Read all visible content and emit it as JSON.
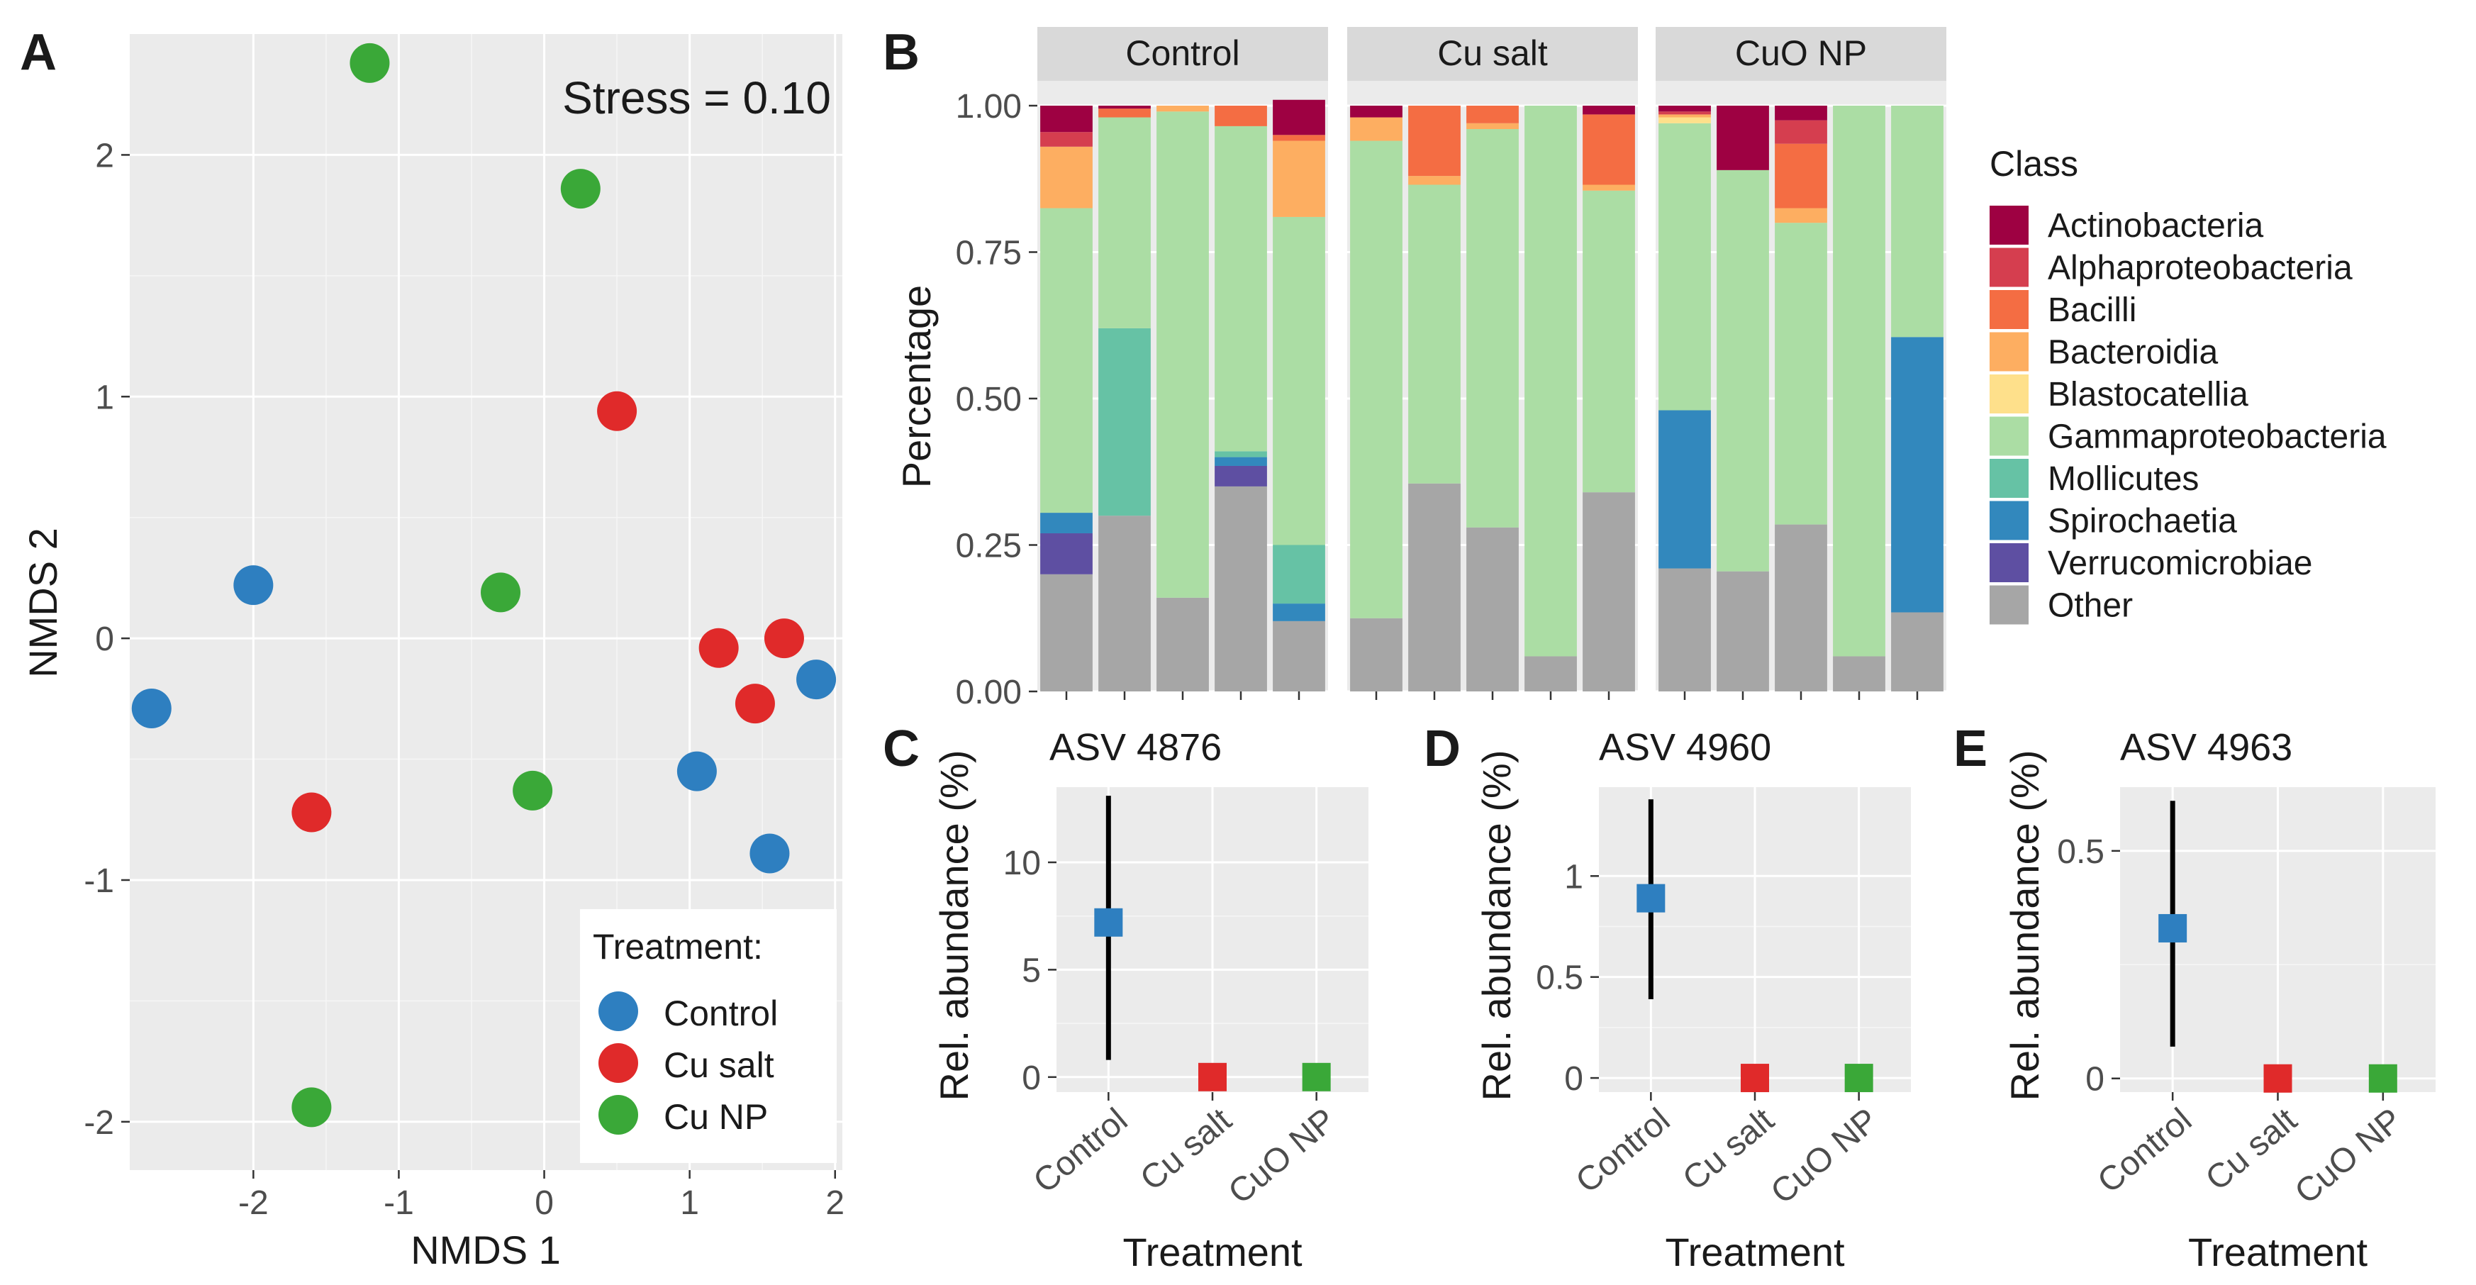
{
  "colors": {
    "control": "#2e7fc0",
    "cu_salt": "#e02a2a",
    "cu_np": "#3aa838"
  },
  "panel_letters": [
    "A",
    "B",
    "C",
    "D",
    "E"
  ],
  "chart_data": [
    {
      "id": "A",
      "type": "scatter",
      "title": "",
      "xlabel": "NMDS 1",
      "ylabel": "NMDS 2",
      "annotation": "Stress = 0.10",
      "xlim": [
        -2.85,
        2.05
      ],
      "ylim": [
        -2.2,
        2.5
      ],
      "xticks": [
        -2,
        -1,
        0,
        1,
        2
      ],
      "yticks": [
        -2,
        -1,
        0,
        1,
        2
      ],
      "xtick_labels": [
        "-2",
        "-1",
        "0",
        "1",
        "2"
      ],
      "ytick_labels": [
        "-2",
        "-1",
        "0",
        "1",
        "2"
      ],
      "legend": {
        "title": "Treatment:",
        "position": "bottom-right",
        "entries": [
          "Control",
          "Cu salt",
          "Cu NP"
        ]
      },
      "series": [
        {
          "name": "Control",
          "color_key": "control",
          "points": [
            [
              -2.0,
              0.22
            ],
            [
              -2.7,
              -0.29
            ],
            [
              1.05,
              -0.55
            ],
            [
              1.55,
              -0.89
            ],
            [
              1.87,
              -0.17
            ]
          ]
        },
        {
          "name": "Cu salt",
          "color_key": "cu_salt",
          "points": [
            [
              0.5,
              0.94
            ],
            [
              1.2,
              -0.04
            ],
            [
              1.65,
              0.0
            ],
            [
              1.45,
              -0.27
            ],
            [
              -1.6,
              -0.72
            ]
          ]
        },
        {
          "name": "Cu NP",
          "color_key": "cu_np",
          "points": [
            [
              -1.2,
              2.38
            ],
            [
              0.25,
              1.86
            ],
            [
              -0.3,
              0.19
            ],
            [
              -0.08,
              -0.63
            ],
            [
              -1.6,
              -1.94
            ]
          ]
        }
      ]
    },
    {
      "id": "B",
      "type": "bar",
      "stacked": true,
      "ylabel": "Percentage",
      "xlabel": "",
      "ylim": [
        0,
        1.0
      ],
      "yticks": [
        0,
        0.25,
        0.5,
        0.75,
        1.0
      ],
      "ytick_labels": [
        "0.00",
        "0.25",
        "0.50",
        "0.75",
        "1.00"
      ],
      "legend": {
        "title": "Class",
        "position": "right"
      },
      "classes": [
        {
          "name": "Actinobacteria",
          "color": "#9e0142"
        },
        {
          "name": "Alphaproteobacteria",
          "color": "#d53e4f"
        },
        {
          "name": "Bacilli",
          "color": "#f46d43"
        },
        {
          "name": "Bacteroidia",
          "color": "#fdae61"
        },
        {
          "name": "Blastocatellia",
          "color": "#fee08b"
        },
        {
          "name": "Gammaproteobacteria",
          "color": "#abdda4"
        },
        {
          "name": "Mollicutes",
          "color": "#66c2a5"
        },
        {
          "name": "Spirochaetia",
          "color": "#3288bd"
        },
        {
          "name": "Verrucomicrobiae",
          "color": "#5e4fa2"
        },
        {
          "name": "Other",
          "color": "#a6a6a6"
        }
      ],
      "stack_order_bottom_to_top": [
        "Other",
        "Verrucomicrobiae",
        "Spirochaetia",
        "Mollicutes",
        "Gammaproteobacteria",
        "Blastocatellia",
        "Bacteroidia",
        "Bacilli",
        "Alphaproteobacteria",
        "Actinobacteria"
      ],
      "facets": [
        {
          "label": "Control",
          "samples": [
            {
              "Other": 0.2,
              "Verrucomicrobiae": 0.07,
              "Spirochaetia": 0.035,
              "Gammaproteobacteria": 0.52,
              "Bacteroidia": 0.105,
              "Alphaproteobacteria": 0.025,
              "Actinobacteria": 0.045
            },
            {
              "Other": 0.3,
              "Mollicutes": 0.32,
              "Gammaproteobacteria": 0.36,
              "Bacilli": 0.015,
              "Actinobacteria": 0.005
            },
            {
              "Other": 0.16,
              "Gammaproteobacteria": 0.83,
              "Bacteroidia": 0.01
            },
            {
              "Other": 0.35,
              "Verrucomicrobiae": 0.035,
              "Spirochaetia": 0.015,
              "Mollicutes": 0.01,
              "Gammaproteobacteria": 0.555,
              "Bacilli": 0.035
            },
            {
              "Other": 0.12,
              "Spirochaetia": 0.03,
              "Mollicutes": 0.1,
              "Gammaproteobacteria": 0.56,
              "Bacteroidia": 0.13,
              "Bacilli": 0.01,
              "Actinobacteria": 0.06
            }
          ]
        },
        {
          "label": "Cu salt",
          "samples": [
            {
              "Other": 0.125,
              "Gammaproteobacteria": 0.815,
              "Bacteroidia": 0.04,
              "Actinobacteria": 0.02
            },
            {
              "Other": 0.355,
              "Gammaproteobacteria": 0.51,
              "Bacilli": 0.12,
              "Bacteroidia": 0.015
            },
            {
              "Other": 0.28,
              "Gammaproteobacteria": 0.68,
              "Bacilli": 0.03,
              "Bacteroidia": 0.01
            },
            {
              "Other": 0.06,
              "Gammaproteobacteria": 0.94
            },
            {
              "Other": 0.34,
              "Gammaproteobacteria": 0.515,
              "Bacteroidia": 0.01,
              "Bacilli": 0.12,
              "Actinobacteria": 0.015
            }
          ]
        },
        {
          "label": "CuO NP",
          "samples": [
            {
              "Other": 0.21,
              "Spirochaetia": 0.27,
              "Gammaproteobacteria": 0.49,
              "Blastocatellia": 0.01,
              "Bacteroidia": 0.005,
              "Alphaproteobacteria": 0.005,
              "Actinobacteria": 0.01
            },
            {
              "Other": 0.205,
              "Gammaproteobacteria": 0.685,
              "Actinobacteria": 0.11
            },
            {
              "Other": 0.285,
              "Gammaproteobacteria": 0.515,
              "Bacteroidia": 0.025,
              "Bacilli": 0.11,
              "Alphaproteobacteria": 0.04,
              "Actinobacteria": 0.025
            },
            {
              "Other": 0.06,
              "Gammaproteobacteria": 0.94
            },
            {
              "Other": 0.135,
              "Spirochaetia": 0.47,
              "Gammaproteobacteria": 0.395
            }
          ]
        }
      ]
    },
    {
      "id": "C",
      "type": "scatter",
      "title": "ASV 4876",
      "xlabel": "Treatment",
      "ylabel": "Rel. abundance (%)",
      "categories": [
        "Control",
        "Cu salt",
        "CuO NP"
      ],
      "ylim": [
        -0.7,
        13.5
      ],
      "yticks": [
        0,
        5,
        10
      ],
      "ytick_labels": [
        "0",
        "5",
        "10"
      ],
      "values": [
        7.2,
        0,
        0
      ],
      "error_low": [
        0.8,
        null,
        null
      ],
      "error_high": [
        13.1,
        null,
        null
      ],
      "color_keys": [
        "control",
        "cu_salt",
        "cu_np"
      ]
    },
    {
      "id": "D",
      "type": "scatter",
      "title": "ASV 4960",
      "xlabel": "Treatment",
      "ylabel": "Rel. abundance (%)",
      "categories": [
        "Control",
        "Cu salt",
        "CuO NP"
      ],
      "ylim": [
        -0.07,
        1.44
      ],
      "yticks": [
        0,
        0.5,
        1
      ],
      "ytick_labels": [
        "0",
        "0.5",
        "1"
      ],
      "values": [
        0.89,
        0,
        0
      ],
      "error_low": [
        0.39,
        null,
        null
      ],
      "error_high": [
        1.38,
        null,
        null
      ],
      "color_keys": [
        "control",
        "cu_salt",
        "cu_np"
      ]
    },
    {
      "id": "E",
      "type": "scatter",
      "title": "ASV 4963",
      "xlabel": "Treatment",
      "ylabel": "Rel. abundance (%)",
      "categories": [
        "Control",
        "Cu salt",
        "CuO NP"
      ],
      "ylim": [
        -0.03,
        0.64
      ],
      "yticks": [
        0,
        0.5
      ],
      "ytick_labels": [
        "0",
        "0.5"
      ],
      "values": [
        0.33,
        0,
        0
      ],
      "error_low": [
        0.07,
        null,
        null
      ],
      "error_high": [
        0.61,
        null,
        null
      ],
      "color_keys": [
        "control",
        "cu_salt",
        "cu_np"
      ]
    }
  ]
}
